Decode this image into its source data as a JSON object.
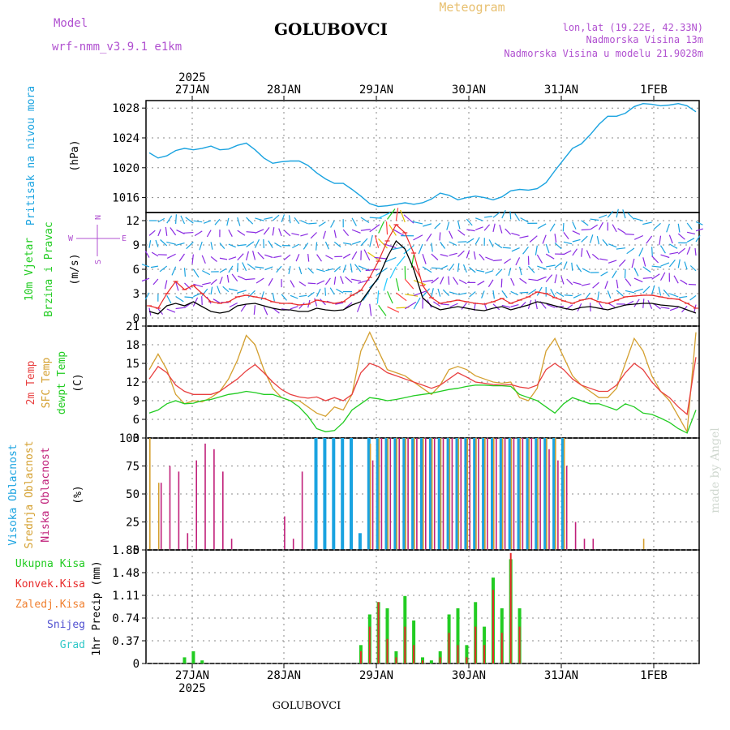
{
  "header": {
    "title": "GOLUBOVCI",
    "meteogram": "Meteogram",
    "model_label": "Model",
    "model_name": "wrf-nmm_v3.9.1  e1km",
    "location": "lon,lat (19.22E, 42.33N)",
    "elevation": "Nadmorska Visina 13m",
    "model_elevation": "Nadmorska Visina u modelu 21.9028m",
    "footer": "GOLUBOVCI",
    "watermark": "made by Angel",
    "year_top": "2025",
    "year_bottom": "2025"
  },
  "colors": {
    "pressure": "#1aa3e0",
    "wind_speed": "#000000",
    "gust": "#e82a2a",
    "temp2m": "#e84040",
    "sfc_temp": "#d4a030",
    "dewpoint": "#22cc22",
    "cloud_high": "#1aa3e0",
    "cloud_mid": "#d4a030",
    "cloud_low": "#c0207a",
    "precip_total": "#22cc22",
    "precip_conv": "#e82a2a",
    "precip_frozen": "#f08030",
    "precip_snow": "#5050d0",
    "precip_grad": "#30c8c8",
    "label_purple": "#b050d0"
  },
  "chart_data": [
    {
      "type": "line",
      "panel": "pressure",
      "ylabel_main": "Pritisak na nivou mora",
      "ylabel_unit": "(hPa)",
      "ylim": [
        1014,
        1029
      ],
      "yticks": [
        "1016",
        "1020",
        "1024",
        "1028"
      ],
      "x_ticks": [
        "27JAN",
        "28JAN",
        "29JAN",
        "30JAN",
        "31JAN",
        "1FEB"
      ],
      "series": [
        {
          "values": [
            1022.0,
            1021.3,
            1021.6,
            1022.3,
            1022.6,
            1022.4,
            1022.6,
            1022.9,
            1022.4,
            1022.5,
            1023.0,
            1023.3,
            1022.4,
            1021.3,
            1020.6,
            1020.8,
            1020.9,
            1020.9,
            1020.3,
            1019.3,
            1018.5,
            1017.9,
            1017.9,
            1017.1,
            1016.2,
            1015.2,
            1014.8,
            1014.9,
            1015.1,
            1015.3,
            1015.1,
            1015.3,
            1015.8,
            1016.6,
            1016.3,
            1015.7,
            1016.0,
            1016.2,
            1016.0,
            1015.7,
            1016.1,
            1016.9,
            1017.1,
            1017.0,
            1017.2,
            1018.0,
            1019.6,
            1021.1,
            1022.6,
            1023.2,
            1024.4,
            1025.8,
            1026.9,
            1026.9,
            1027.3,
            1028.2,
            1028.6,
            1028.5,
            1028.3,
            1028.4,
            1028.6,
            1028.3,
            1027.5
          ]
        }
      ]
    },
    {
      "type": "line",
      "panel": "wind",
      "ylabel_main": "10m Vjetar",
      "ylabel_main2": "Brzina i Pravac",
      "ylabel_unit": "(m/s)",
      "compass": [
        "N",
        "W",
        "E",
        "S"
      ],
      "ylim": [
        -1,
        13
      ],
      "yticks": [
        "0",
        "3",
        "6",
        "9",
        "12"
      ],
      "series": [
        {
          "values": [
            0.8,
            0.5,
            1.5,
            1.8,
            1.5,
            2.0,
            1.4,
            0.8,
            0.6,
            0.8,
            1.5,
            1.7,
            1.8,
            1.5,
            1.2,
            1.0,
            1.0,
            0.8,
            0.8,
            1.2,
            1.0,
            0.9,
            1.0,
            1.6,
            2.0,
            3.5,
            5.0,
            7.5,
            9.5,
            8.5,
            6.0,
            2.5,
            1.5,
            1.0,
            1.2,
            1.4,
            1.2,
            1.0,
            0.9,
            1.2,
            1.4,
            1.0,
            1.3,
            1.6,
            2.0,
            1.8,
            1.5,
            1.2,
            1.0,
            1.3,
            1.4,
            1.2,
            1.0,
            1.3,
            1.6,
            1.7,
            1.8,
            1.8,
            1.6,
            1.5,
            1.4,
            1.0,
            0.6
          ]
        },
        {
          "values": [
            1.5,
            1.2,
            3.0,
            4.5,
            3.5,
            4.0,
            3.0,
            2.0,
            1.8,
            2.0,
            2.6,
            2.8,
            2.6,
            2.4,
            2.0,
            1.8,
            1.8,
            1.6,
            1.7,
            2.2,
            2.0,
            1.8,
            2.0,
            2.8,
            3.4,
            5.0,
            7.0,
            9.5,
            11.5,
            10.5,
            8.0,
            4.0,
            2.5,
            1.8,
            2.0,
            2.2,
            2.0,
            1.8,
            1.7,
            2.0,
            2.4,
            1.8,
            2.2,
            2.6,
            3.2,
            3.0,
            2.5,
            2.1,
            1.8,
            2.2,
            2.4,
            2.0,
            1.8,
            2.2,
            2.6,
            2.7,
            2.8,
            2.8,
            2.6,
            2.4,
            2.3,
            1.8,
            1.2
          ]
        }
      ]
    },
    {
      "type": "line",
      "panel": "temperature",
      "ylabel_temp": "2m Temp",
      "ylabel_sfc": "SFC Temp",
      "ylabel_dew": "dewpt Temp",
      "ylabel_unit": "(C)",
      "ylim": [
        3,
        21
      ],
      "yticks": [
        "3",
        "6",
        "9",
        "12",
        "15",
        "18",
        "21"
      ],
      "series": [
        {
          "values": [
            12.5,
            14.5,
            13.5,
            11.5,
            10.5,
            10.0,
            10.0,
            10.0,
            10.5,
            11.5,
            12.5,
            13.8,
            14.8,
            13.5,
            12.0,
            10.8,
            10.0,
            9.6,
            9.4,
            9.6,
            9.0,
            9.5,
            9.0,
            10.0,
            13.5,
            15.0,
            14.5,
            13.5,
            13.0,
            12.5,
            12.0,
            11.5,
            11.0,
            11.5,
            12.5,
            13.5,
            12.8,
            12.0,
            11.8,
            11.6,
            11.5,
            11.6,
            11.2,
            11.0,
            11.5,
            14.0,
            15.0,
            14.0,
            12.5,
            11.5,
            11.0,
            10.5,
            10.5,
            11.5,
            13.5,
            15.0,
            14.0,
            12.0,
            10.5,
            9.5,
            8.0,
            6.8,
            16.0
          ]
        },
        {
          "values": [
            14.0,
            16.5,
            14.0,
            10.0,
            8.5,
            9.0,
            8.8,
            9.5,
            10.5,
            12.5,
            15.5,
            19.5,
            18.0,
            14.0,
            11.0,
            9.5,
            9.0,
            9.0,
            8.0,
            7.0,
            6.5,
            8.0,
            7.5,
            10.0,
            17.0,
            20.0,
            17.0,
            14.0,
            13.5,
            13.0,
            12.0,
            11.0,
            10.0,
            11.5,
            14.0,
            14.5,
            14.0,
            13.0,
            12.5,
            12.0,
            11.8,
            12.0,
            9.5,
            9.0,
            11.0,
            17.0,
            19.0,
            16.0,
            13.0,
            11.5,
            10.5,
            9.5,
            9.5,
            11.0,
            15.0,
            19.0,
            17.0,
            13.0,
            10.5,
            9.0,
            6.5,
            4.0,
            20.0
          ]
        },
        {
          "values": [
            7.0,
            7.5,
            8.5,
            9.0,
            8.5,
            8.6,
            9.0,
            9.2,
            9.6,
            10.0,
            10.2,
            10.5,
            10.3,
            10.0,
            10.0,
            9.5,
            9.0,
            8.0,
            6.5,
            4.5,
            4.0,
            4.2,
            5.5,
            7.5,
            8.5,
            9.5,
            9.3,
            9.0,
            9.2,
            9.5,
            9.8,
            10.0,
            10.2,
            10.5,
            10.8,
            11.0,
            11.3,
            11.5,
            11.5,
            11.4,
            11.4,
            11.3,
            10.0,
            9.5,
            9.0,
            8.0,
            7.0,
            8.5,
            9.5,
            9.0,
            8.5,
            8.5,
            8.0,
            7.5,
            8.5,
            8.0,
            7.0,
            6.8,
            6.2,
            5.5,
            4.5,
            3.8,
            7.5
          ]
        }
      ]
    },
    {
      "type": "bar",
      "panel": "clouds",
      "ylabel_high": "Visoka Oblacnost",
      "ylabel_mid": "Srednja Oblacnost",
      "ylabel_low": "Niska Oblacnost",
      "ylabel_unit": "(%)",
      "ylim": [
        0,
        100
      ],
      "yticks": [
        "0",
        "25",
        "50",
        "75",
        "100"
      ],
      "series": [
        {
          "values": [
            0,
            0,
            0,
            0,
            0,
            0,
            0,
            0,
            0,
            0,
            0,
            0,
            0,
            0,
            0,
            0,
            0,
            0,
            0,
            100,
            100,
            100,
            100,
            100,
            15,
            100,
            100,
            100,
            100,
            100,
            100,
            100,
            100,
            100,
            100,
            100,
            100,
            100,
            100,
            100,
            100,
            100,
            100,
            100,
            100,
            100,
            100,
            100,
            0,
            0,
            0,
            0,
            0,
            0,
            0,
            0,
            0,
            0,
            0,
            0,
            0,
            0,
            0
          ]
        },
        {
          "values": [
            100,
            60,
            0,
            0,
            0,
            0,
            0,
            0,
            0,
            0,
            0,
            0,
            0,
            0,
            0,
            0,
            0,
            0,
            0,
            0,
            0,
            0,
            0,
            0,
            0,
            95,
            100,
            100,
            100,
            100,
            100,
            100,
            100,
            100,
            100,
            100,
            100,
            100,
            100,
            100,
            100,
            100,
            100,
            100,
            100,
            100,
            100,
            100,
            0,
            0,
            0,
            0,
            0,
            0,
            0,
            0,
            10,
            0,
            0,
            0,
            0,
            0,
            0
          ]
        },
        {
          "values": [
            0,
            60,
            75,
            70,
            15,
            80,
            95,
            90,
            70,
            10,
            0,
            0,
            0,
            0,
            0,
            30,
            10,
            70,
            0,
            0,
            0,
            0,
            0,
            0,
            0,
            80,
            100,
            100,
            100,
            100,
            100,
            100,
            100,
            100,
            100,
            100,
            100,
            100,
            100,
            100,
            100,
            100,
            100,
            100,
            100,
            90,
            80,
            75,
            25,
            10,
            10,
            0,
            0,
            0,
            0,
            0,
            0,
            0,
            0,
            0,
            0,
            0,
            0
          ]
        }
      ]
    },
    {
      "type": "bar",
      "panel": "precip",
      "ylabel_unit": "1hr Precip (mm)",
      "legend": [
        "Ukupna Kisa",
        "Konvek.Kisa",
        "Zaledj.Kisa",
        "Snijeg",
        "Grad"
      ],
      "ylim": [
        0,
        1.85
      ],
      "yticks": [
        "0",
        "0.37",
        "0.74",
        "1.11",
        "1.48",
        "1.85"
      ],
      "x_ticks": [
        "27JAN",
        "28JAN",
        "29JAN",
        "30JAN",
        "31JAN",
        "1FEB"
      ],
      "series": [
        {
          "values": [
            0,
            0,
            0,
            0,
            0.1,
            0.2,
            0.05,
            0,
            0,
            0,
            0,
            0,
            0,
            0,
            0,
            0,
            0,
            0,
            0,
            0,
            0,
            0,
            0,
            0,
            0.3,
            0.8,
            1.0,
            0.9,
            0.2,
            1.1,
            0.7,
            0.1,
            0.05,
            0.2,
            0.8,
            0.9,
            0.3,
            1.0,
            0.6,
            1.4,
            0.9,
            1.7,
            0.9,
            0,
            0,
            0,
            0,
            0,
            0,
            0,
            0,
            0,
            0,
            0,
            0,
            0,
            0,
            0,
            0,
            0,
            0,
            0,
            0
          ]
        },
        {
          "values": [
            0,
            0,
            0,
            0,
            0,
            0,
            0,
            0,
            0,
            0,
            0,
            0,
            0,
            0,
            0,
            0,
            0,
            0,
            0,
            0,
            0,
            0,
            0,
            0,
            0.2,
            0.6,
            1.0,
            0.4,
            0.1,
            0.6,
            0.3,
            0.05,
            0,
            0.1,
            0.5,
            0.3,
            0.1,
            0.6,
            0.3,
            1.2,
            0.5,
            1.8,
            0.6,
            0,
            0,
            0,
            0,
            0,
            0,
            0,
            0,
            0,
            0,
            0,
            0,
            0,
            0,
            0,
            0,
            0,
            0,
            0,
            0
          ]
        }
      ]
    }
  ]
}
